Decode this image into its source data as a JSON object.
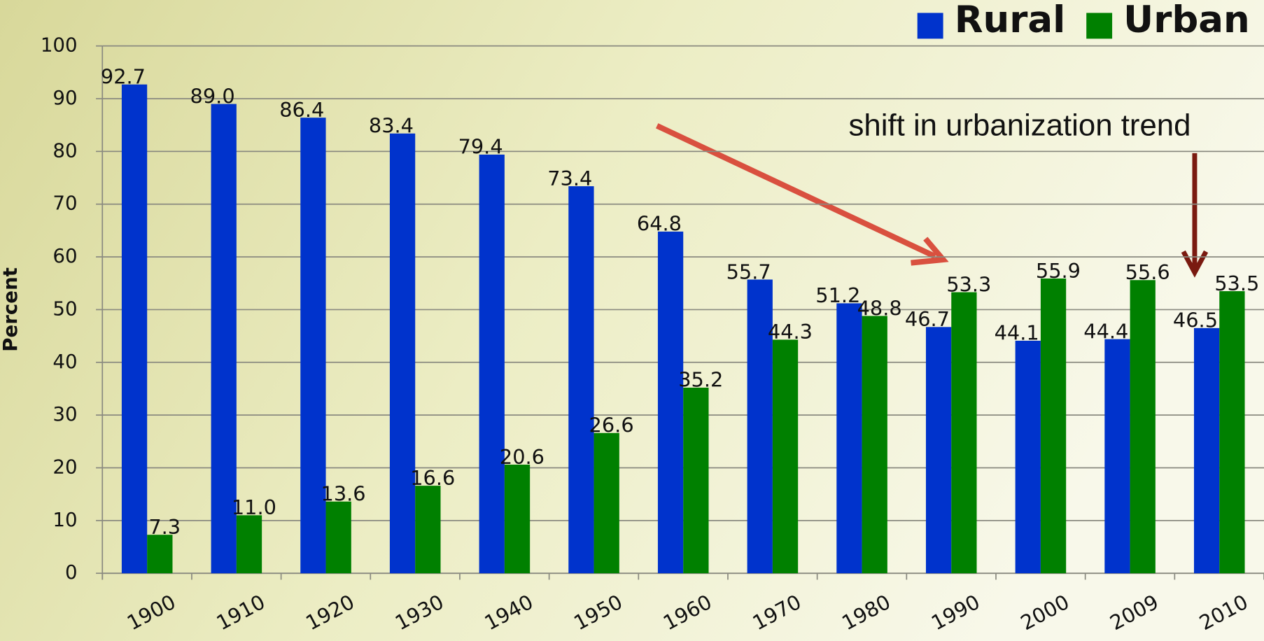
{
  "chart_data": {
    "type": "bar",
    "categories": [
      "1900",
      "1910",
      "1920",
      "1930",
      "1940",
      "1950",
      "1960",
      "1970",
      "1980",
      "1990",
      "2000",
      "2009",
      "2010"
    ],
    "series": [
      {
        "name": "Rural",
        "color": "#0033cc",
        "values": [
          92.7,
          89.0,
          86.4,
          83.4,
          79.4,
          73.4,
          64.8,
          55.7,
          51.2,
          46.7,
          44.1,
          44.4,
          46.5
        ],
        "value_labels": [
          "92.7",
          "89.0",
          "86.4",
          "83.4",
          "79.4",
          "73.4",
          "64.8",
          "55.7",
          "51.2",
          "46.7",
          "44.1",
          "44.4",
          "46.5"
        ]
      },
      {
        "name": "Urban",
        "color": "#008000",
        "values": [
          7.3,
          11.0,
          13.6,
          16.6,
          20.6,
          26.6,
          35.2,
          44.3,
          48.8,
          53.3,
          55.9,
          55.6,
          53.5
        ],
        "value_labels": [
          "7.3",
          "11.0",
          "13.6",
          "16.6",
          "20.6",
          "26.6",
          "35.2",
          "44.3",
          "48.8",
          "53.3",
          "55.9",
          "55.6",
          "53.5"
        ]
      }
    ],
    "y_label": "Percent",
    "annotation": "shift in urbanization trend",
    "ylim": [
      0,
      100
    ],
    "yticks": [
      0,
      10,
      20,
      30,
      40,
      50,
      60,
      70,
      80,
      90,
      100
    ],
    "grid": true,
    "legend": "top-right"
  }
}
